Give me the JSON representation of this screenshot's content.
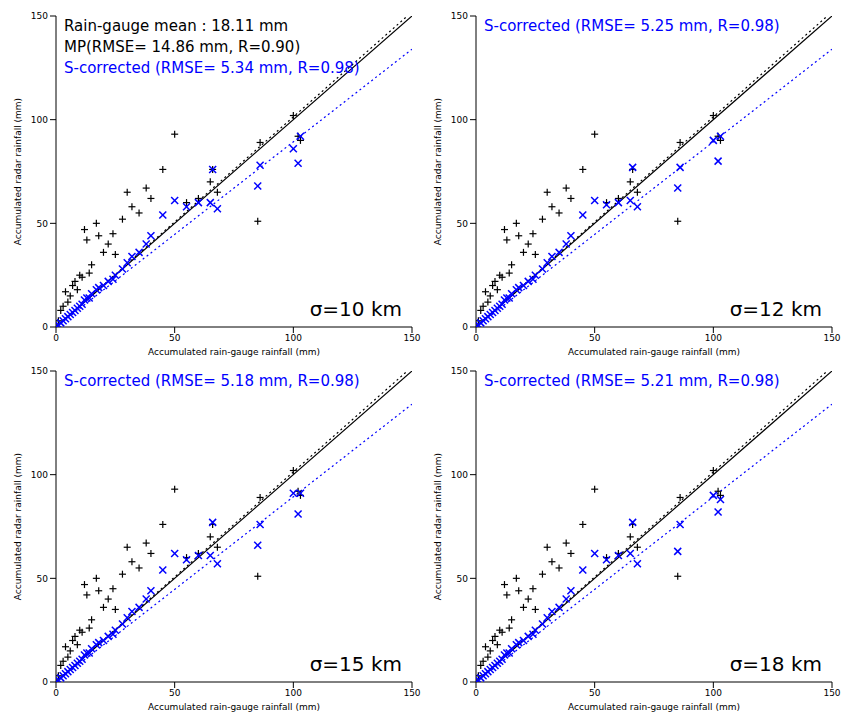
{
  "chart_data": [
    {
      "type": "scatter",
      "x_label": "Accumulated rain-gauge rainfall (mm)",
      "y_label": "Accumulated radar rainfall (mm)",
      "xlim": [
        0,
        150
      ],
      "ylim": [
        0,
        150
      ],
      "xticks": [
        0,
        50,
        100,
        150
      ],
      "yticks": [
        0,
        50,
        100,
        150
      ],
      "x": [
        0,
        1,
        2,
        3,
        4,
        5,
        6,
        7,
        8,
        9,
        10,
        11,
        12,
        13,
        14,
        15,
        17,
        18,
        20,
        22,
        24,
        25,
        28,
        30,
        32,
        35,
        38,
        40,
        45,
        50,
        55,
        60,
        65,
        66,
        68,
        85,
        86,
        100,
        102,
        103
      ],
      "series": [
        {
          "color": "#000000",
          "marker": "plus",
          "values": [
            0,
            3,
            8,
            10,
            17,
            12,
            15,
            20,
            22,
            18,
            25,
            24,
            47,
            42,
            26,
            30,
            50,
            44,
            36,
            40,
            45,
            35,
            52,
            65,
            58,
            55,
            67,
            62,
            76,
            93,
            60,
            62,
            70,
            76,
            65,
            51,
            89,
            102,
            92,
            90
          ]
        },
        {
          "color": "#0000ff",
          "marker": "x",
          "values": [
            0,
            1,
            2,
            3,
            4,
            5,
            6,
            7,
            8,
            9,
            10,
            11,
            13,
            14,
            14,
            16,
            18,
            19,
            20,
            22,
            23,
            25,
            28,
            31,
            34,
            36,
            40,
            44,
            54,
            61,
            58,
            60,
            60,
            76,
            57,
            68,
            78,
            86,
            79,
            92
          ]
        }
      ],
      "lines": [
        {
          "x": [
            0,
            150
          ],
          "y": [
            0,
            150
          ],
          "color": "#000000",
          "line_style": "solid"
        },
        {
          "x": [
            0,
            150
          ],
          "y": [
            0,
            152
          ],
          "color": "#000000",
          "line_style": "dotted"
        },
        {
          "x": [
            0,
            150
          ],
          "y": [
            0,
            134
          ],
          "color": "#0000ff",
          "line_style": "dotted"
        }
      ],
      "annotations": [
        {
          "text": "Rain-gauge mean : 18.11 mm",
          "color": "#000000"
        },
        {
          "text": "MP(RMSE= 14.86 mm, R=0.90)",
          "color": "#000000"
        },
        {
          "text": "S-corrected (RMSE= 5.34 mm, R=0.98)",
          "color": "#0000ff"
        }
      ],
      "label": "σ=10 km"
    },
    {
      "type": "scatter",
      "x_label": "Accumulated rain-gauge rainfall (mm)",
      "y_label": "Accumulated radar rainfall (mm)",
      "xlim": [
        0,
        150
      ],
      "ylim": [
        0,
        150
      ],
      "xticks": [
        0,
        50,
        100,
        150
      ],
      "yticks": [
        0,
        50,
        100,
        150
      ],
      "x": [
        0,
        1,
        2,
        3,
        4,
        5,
        6,
        7,
        8,
        9,
        10,
        11,
        12,
        13,
        14,
        15,
        17,
        18,
        20,
        22,
        24,
        25,
        28,
        30,
        32,
        35,
        38,
        40,
        45,
        50,
        55,
        60,
        65,
        66,
        68,
        85,
        86,
        100,
        102,
        103
      ],
      "series": [
        {
          "color": "#000000",
          "marker": "plus",
          "values": [
            0,
            3,
            8,
            10,
            17,
            12,
            15,
            20,
            22,
            18,
            25,
            24,
            47,
            42,
            26,
            30,
            50,
            44,
            36,
            40,
            45,
            35,
            52,
            65,
            58,
            55,
            67,
            62,
            76,
            93,
            60,
            62,
            70,
            76,
            65,
            51,
            89,
            102,
            92,
            90
          ]
        },
        {
          "color": "#0000ff",
          "marker": "x",
          "values": [
            0,
            1,
            2,
            3,
            4,
            5,
            6,
            7,
            8,
            9,
            10,
            11,
            13,
            14,
            14,
            16,
            18,
            19,
            20,
            22,
            23,
            25,
            28,
            31,
            34,
            36,
            40,
            44,
            54,
            61,
            59,
            60,
            61,
            77,
            58,
            67,
            77,
            90,
            80,
            92
          ]
        }
      ],
      "lines": [
        {
          "x": [
            0,
            150
          ],
          "y": [
            0,
            150
          ],
          "color": "#000000",
          "line_style": "solid"
        },
        {
          "x": [
            0,
            150
          ],
          "y": [
            0,
            152
          ],
          "color": "#000000",
          "line_style": "dotted"
        },
        {
          "x": [
            0,
            150
          ],
          "y": [
            0,
            134
          ],
          "color": "#0000ff",
          "line_style": "dotted"
        }
      ],
      "annotations": [
        {
          "text": "S-corrected (RMSE= 5.25 mm, R=0.98)",
          "color": "#0000ff"
        }
      ],
      "label": "σ=12 km"
    },
    {
      "type": "scatter",
      "x_label": "Accumulated rain-gauge rainfall (mm)",
      "y_label": "Accumulated radar rainfall (mm)",
      "xlim": [
        0,
        150
      ],
      "ylim": [
        0,
        150
      ],
      "xticks": [
        0,
        50,
        100,
        150
      ],
      "yticks": [
        0,
        50,
        100,
        150
      ],
      "x": [
        0,
        1,
        2,
        3,
        4,
        5,
        6,
        7,
        8,
        9,
        10,
        11,
        12,
        13,
        14,
        15,
        17,
        18,
        20,
        22,
        24,
        25,
        28,
        30,
        32,
        35,
        38,
        40,
        45,
        50,
        55,
        60,
        65,
        66,
        68,
        85,
        86,
        100,
        102,
        103
      ],
      "series": [
        {
          "color": "#000000",
          "marker": "plus",
          "values": [
            0,
            3,
            8,
            10,
            17,
            12,
            15,
            20,
            22,
            18,
            25,
            24,
            47,
            42,
            26,
            30,
            50,
            44,
            36,
            40,
            45,
            35,
            52,
            65,
            58,
            55,
            67,
            62,
            76,
            93,
            60,
            62,
            70,
            76,
            65,
            51,
            89,
            102,
            92,
            90
          ]
        },
        {
          "color": "#0000ff",
          "marker": "x",
          "values": [
            0,
            1,
            2,
            3,
            4,
            5,
            6,
            7,
            8,
            9,
            10,
            11,
            13,
            14,
            14,
            16,
            18,
            19,
            20,
            22,
            23,
            25,
            28,
            31,
            34,
            36,
            40,
            44,
            54,
            62,
            59,
            61,
            61,
            77,
            57,
            66,
            76,
            91,
            81,
            91
          ]
        }
      ],
      "lines": [
        {
          "x": [
            0,
            150
          ],
          "y": [
            0,
            150
          ],
          "color": "#000000",
          "line_style": "solid"
        },
        {
          "x": [
            0,
            150
          ],
          "y": [
            0,
            152
          ],
          "color": "#000000",
          "line_style": "dotted"
        },
        {
          "x": [
            0,
            150
          ],
          "y": [
            0,
            134
          ],
          "color": "#0000ff",
          "line_style": "dotted"
        }
      ],
      "annotations": [
        {
          "text": "S-corrected (RMSE= 5.18 mm, R=0.98)",
          "color": "#0000ff"
        }
      ],
      "label": "σ=15 km"
    },
    {
      "type": "scatter",
      "x_label": "Accumulated rain-gauge rainfall (mm)",
      "y_label": "Accumulated radar rainfall (mm)",
      "xlim": [
        0,
        150
      ],
      "ylim": [
        0,
        150
      ],
      "xticks": [
        0,
        50,
        100,
        150
      ],
      "yticks": [
        0,
        50,
        100,
        150
      ],
      "x": [
        0,
        1,
        2,
        3,
        4,
        5,
        6,
        7,
        8,
        9,
        10,
        11,
        12,
        13,
        14,
        15,
        17,
        18,
        20,
        22,
        24,
        25,
        28,
        30,
        32,
        35,
        38,
        40,
        45,
        50,
        55,
        60,
        65,
        66,
        68,
        85,
        86,
        100,
        102,
        103
      ],
      "series": [
        {
          "color": "#000000",
          "marker": "plus",
          "values": [
            0,
            3,
            8,
            10,
            17,
            12,
            15,
            20,
            22,
            18,
            25,
            24,
            47,
            42,
            26,
            30,
            50,
            44,
            36,
            40,
            45,
            35,
            52,
            65,
            58,
            55,
            67,
            62,
            76,
            93,
            60,
            62,
            70,
            76,
            65,
            51,
            89,
            102,
            92,
            90
          ]
        },
        {
          "color": "#0000ff",
          "marker": "x",
          "values": [
            0,
            1,
            2,
            3,
            4,
            5,
            6,
            7,
            8,
            9,
            10,
            11,
            13,
            14,
            14,
            16,
            18,
            19,
            20,
            22,
            23,
            25,
            28,
            31,
            34,
            36,
            40,
            44,
            54,
            62,
            59,
            61,
            62,
            77,
            57,
            63,
            76,
            90,
            82,
            88
          ]
        }
      ],
      "lines": [
        {
          "x": [
            0,
            150
          ],
          "y": [
            0,
            150
          ],
          "color": "#000000",
          "line_style": "solid"
        },
        {
          "x": [
            0,
            150
          ],
          "y": [
            0,
            152
          ],
          "color": "#000000",
          "line_style": "dotted"
        },
        {
          "x": [
            0,
            150
          ],
          "y": [
            0,
            134
          ],
          "color": "#0000ff",
          "line_style": "dotted"
        }
      ],
      "annotations": [
        {
          "text": "S-corrected (RMSE= 5.21 mm, R=0.98)",
          "color": "#0000ff"
        }
      ],
      "label": "σ=18 km"
    }
  ]
}
